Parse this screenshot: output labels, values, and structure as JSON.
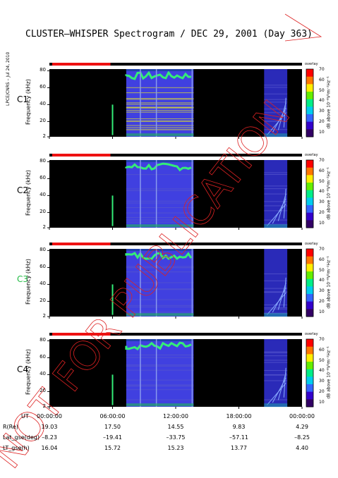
{
  "header": {
    "title": "CLUSTER–WHISPER Spectrogram / DEC 29, 2001 (Day 363)",
    "credit": "LPCE/CNRS – Jul 24, 2010"
  },
  "watermark": "NOT FOR PUBLICATION",
  "colorbar": {
    "ticks": [
      "70",
      "60",
      "50",
      "40",
      "30",
      "20",
      "10"
    ],
    "label": "dB above 10⁻⁸V²m⁻²Hz⁻¹",
    "corner_label": "overlay",
    "colors": [
      "#ff0000",
      "#ff7700",
      "#ffee00",
      "#66ee00",
      "#00ee88",
      "#00ccee",
      "#3366ff",
      "#3300cc",
      "#330066"
    ]
  },
  "colors": {
    "background": "#000000",
    "band": "#4040e0",
    "band_noise": "#2a2ab8",
    "status_red": "#ee1111",
    "status_black": "#000000",
    "signal_green": "#33ee77"
  },
  "chart_data": {
    "type": "heatmap",
    "title": "CLUSTER–WHISPER Spectrogram / DEC 29, 2001 (Day 363)",
    "xlabel": "UT",
    "ylabel": "Frequency (kHz)",
    "ylim": [
      2,
      82
    ],
    "yticks": [
      "80",
      "60",
      "40",
      "20",
      "2"
    ],
    "xticks": [
      "00:00:00",
      "06:00:00",
      "12:00:00",
      "18:00:00",
      "00:00:00"
    ],
    "x_range_hours": [
      0,
      24
    ],
    "colorbar_range_db": [
      10,
      70
    ],
    "panels": [
      {
        "name": "C1",
        "label_color": "#000000",
        "active_intervals_hours": [
          [
            7.3,
            13.7
          ],
          [
            20.4,
            22.6
          ]
        ],
        "status_red_hours": [
          0,
          5.8
        ]
      },
      {
        "name": "C2",
        "label_color": "#000000",
        "active_intervals_hours": [
          [
            7.3,
            13.7
          ],
          [
            20.4,
            22.6
          ]
        ],
        "status_red_hours": [
          0,
          5.8
        ]
      },
      {
        "name": "C3",
        "label_color": "#22bb44",
        "active_intervals_hours": [
          [
            7.3,
            13.7
          ],
          [
            20.4,
            22.6
          ]
        ],
        "status_red_hours": [
          0,
          5.8
        ]
      },
      {
        "name": "C4",
        "label_color": "#000000",
        "active_intervals_hours": [
          [
            7.3,
            13.7
          ],
          [
            20.4,
            22.6
          ]
        ],
        "status_red_hours": [
          0,
          5.8
        ]
      }
    ],
    "orbit_table": {
      "rows": [
        {
          "name": "UT",
          "values": [
            "00:00:00",
            "06:00:00",
            "12:00:00",
            "18:00:00",
            "00:00:00"
          ]
        },
        {
          "name": "R(Re)",
          "values": [
            "19.03",
            "17.50",
            "14.55",
            "9.83",
            "4.29"
          ]
        },
        {
          "name": "Lat_gse(deg)",
          "values": [
            "–8.23",
            "–19.41",
            "–33.75",
            "–57.11",
            "–8.25"
          ]
        },
        {
          "name": "LT_gse(h)",
          "values": [
            "16.04",
            "15.72",
            "15.23",
            "13.77",
            "4.40"
          ]
        }
      ]
    }
  }
}
